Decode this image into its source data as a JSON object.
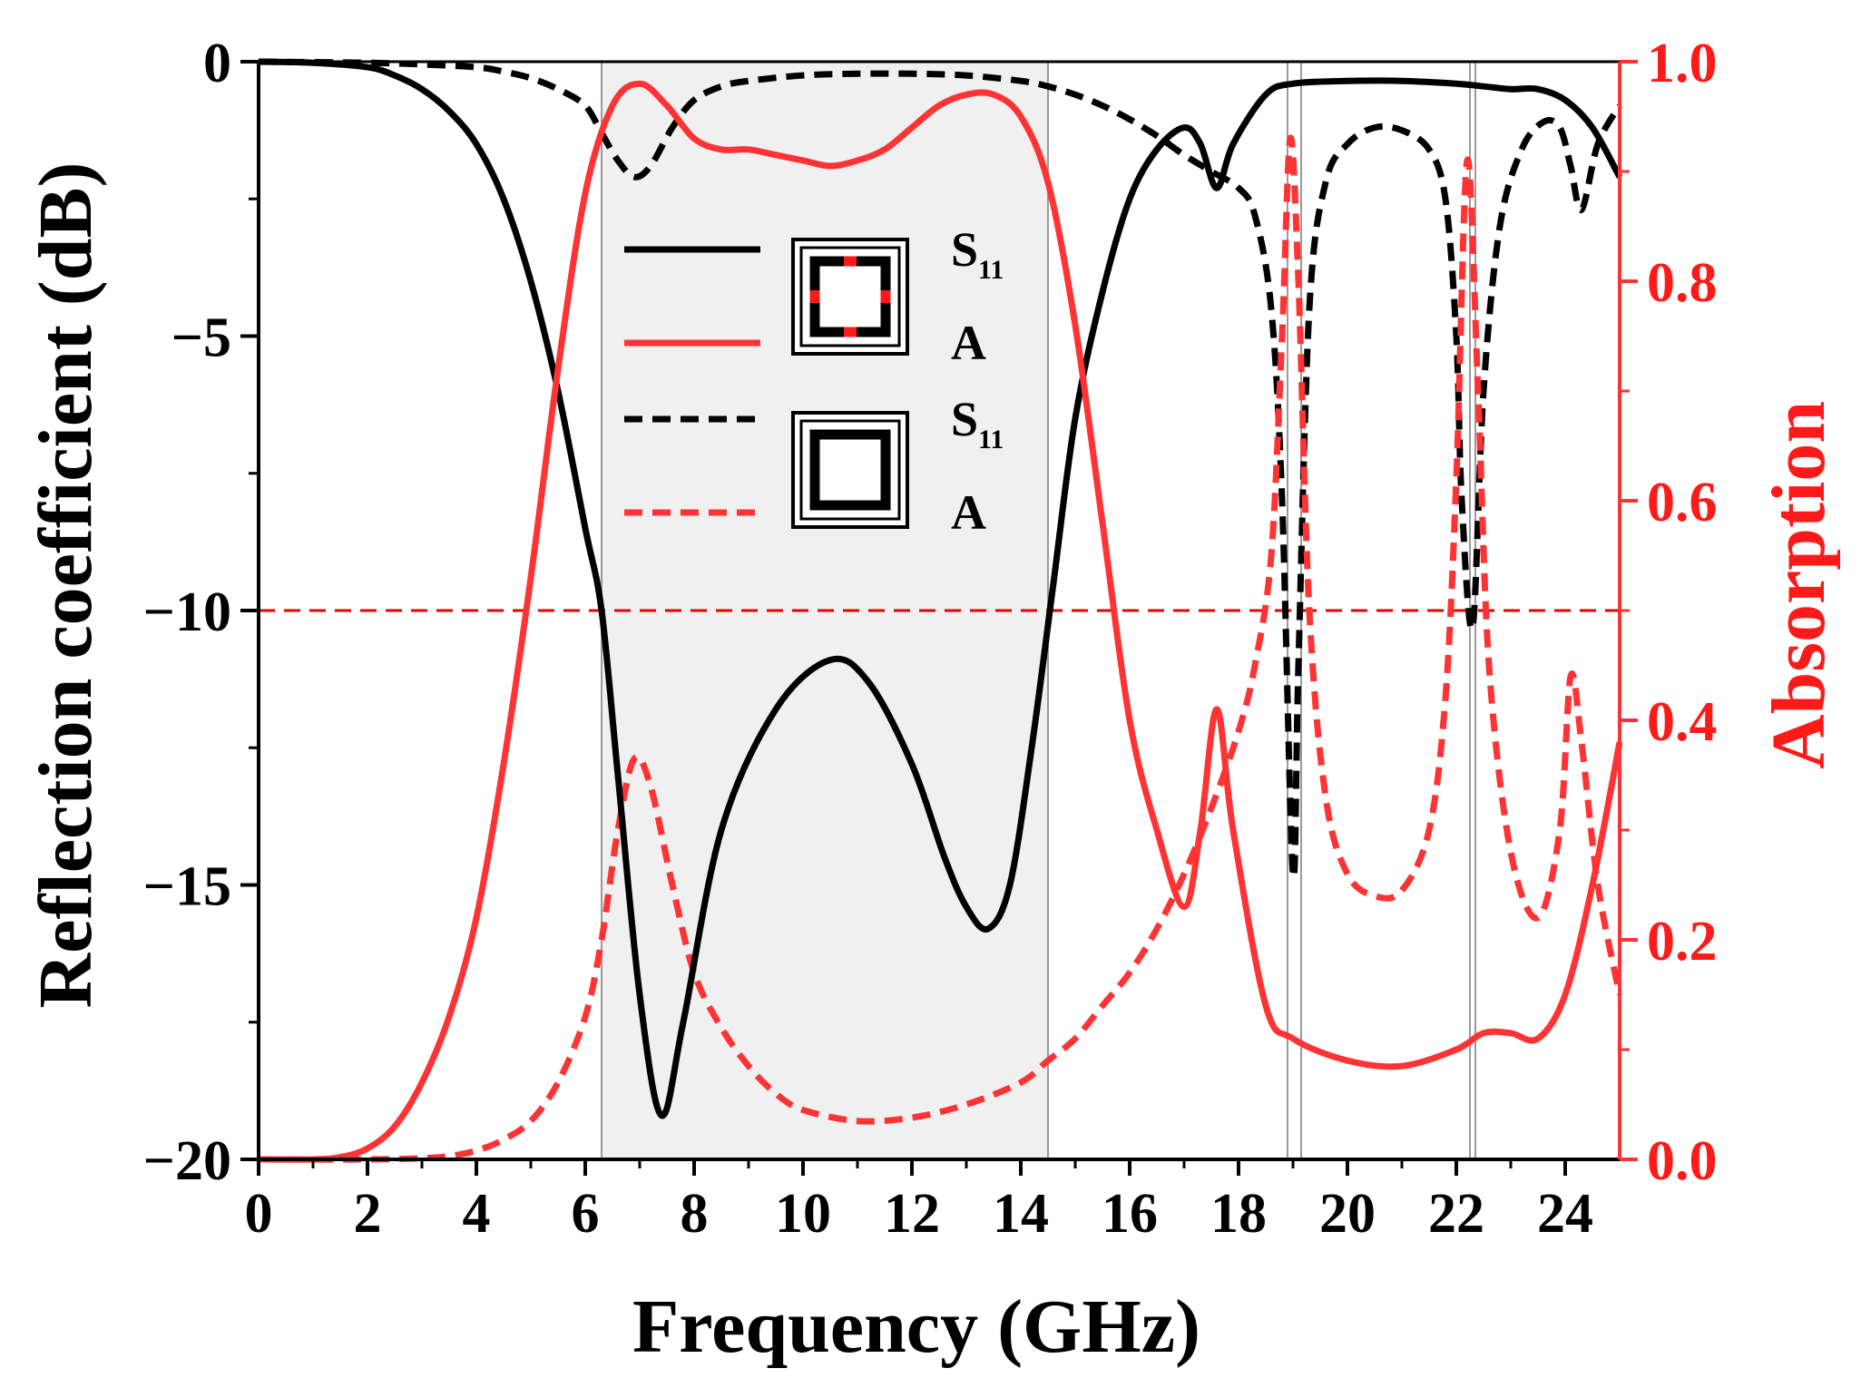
{
  "chart_data": {
    "type": "line",
    "xlabel": "Frequency (GHz)",
    "ylabel": "Reflection coefficient (dB)",
    "y2label": "Absorption",
    "xlim": [
      0,
      25
    ],
    "ylim": [
      -20,
      0
    ],
    "y2lim": [
      0,
      1.0
    ],
    "x_ticks": [
      "0",
      "2",
      "4",
      "6",
      "8",
      "10",
      "12",
      "14",
      "16",
      "18",
      "20",
      "22",
      "24"
    ],
    "y_ticks": [
      "−20",
      "−15",
      "−10",
      "−5",
      "0"
    ],
    "y2_ticks": [
      "0.0",
      "0.2",
      "0.4",
      "0.6",
      "0.8",
      "1.0"
    ],
    "grid": false,
    "legend_position": "center-left",
    "threshold_db": -10,
    "highlight_bands": [
      [
        6.3,
        14.5
      ]
    ],
    "vertical_lines": [
      6.3,
      14.5,
      18.9,
      19.15,
      22.25,
      22.35
    ],
    "colors": {
      "black": "#000000",
      "red": "#ff3333",
      "band": "#f0f0f0"
    },
    "series": [
      {
        "name": "S11",
        "axis": "left",
        "color": "#000000",
        "dash": "solid",
        "x": [
          0,
          1,
          2,
          2.5,
          3,
          3.5,
          4,
          4.5,
          5,
          5.5,
          6,
          6.3,
          6.6,
          7,
          7.4,
          7.8,
          8.5,
          9.5,
          10.5,
          11.2,
          12,
          12.6,
          13,
          13.4,
          13.8,
          14.2,
          14.6,
          15,
          15.5,
          16,
          16.5,
          17,
          17.3,
          17.6,
          17.9,
          18.5,
          19,
          20,
          21,
          22,
          22.5,
          23,
          23.5,
          24,
          24.5,
          25
        ],
        "y": [
          0,
          -0.02,
          -0.1,
          -0.25,
          -0.5,
          -0.9,
          -1.5,
          -2.5,
          -4,
          -6,
          -8.5,
          -10,
          -13,
          -17,
          -19.2,
          -17.5,
          -14,
          -11.8,
          -10.9,
          -11.3,
          -12.8,
          -14.5,
          -15.4,
          -15.8,
          -15,
          -12.5,
          -9.5,
          -6.5,
          -4.2,
          -2.5,
          -1.6,
          -1.2,
          -1.5,
          -2.3,
          -1.5,
          -0.6,
          -0.4,
          -0.35,
          -0.35,
          -0.4,
          -0.45,
          -0.5,
          -0.5,
          -0.7,
          -1.2,
          -2.1
        ]
      },
      {
        "name": "A",
        "axis": "right",
        "color": "#ff3333",
        "dash": "solid",
        "x": [
          0,
          1,
          1.5,
          2,
          2.5,
          3,
          3.5,
          4,
          4.5,
          5,
          5.5,
          6,
          6.5,
          7,
          7.5,
          8,
          8.5,
          9,
          9.5,
          10,
          10.5,
          11,
          11.5,
          12,
          12.5,
          13,
          13.5,
          14,
          14.5,
          15,
          15.5,
          16,
          16.5,
          17,
          17.3,
          17.6,
          17.9,
          18.5,
          19,
          20,
          21,
          22,
          22.5,
          23,
          23.5,
          24,
          24.5,
          25
        ],
        "y": [
          0,
          0,
          0.002,
          0.01,
          0.03,
          0.07,
          0.13,
          0.22,
          0.36,
          0.53,
          0.72,
          0.88,
          0.96,
          0.98,
          0.96,
          0.93,
          0.92,
          0.92,
          0.915,
          0.91,
          0.905,
          0.91,
          0.92,
          0.94,
          0.96,
          0.97,
          0.97,
          0.95,
          0.89,
          0.76,
          0.58,
          0.4,
          0.3,
          0.23,
          0.3,
          0.41,
          0.3,
          0.14,
          0.11,
          0.09,
          0.085,
          0.1,
          0.115,
          0.115,
          0.11,
          0.15,
          0.25,
          0.38
        ]
      },
      {
        "name": "S11",
        "axis": "left",
        "color": "#000000",
        "dash": "dashed",
        "x": [
          0,
          2,
          3,
          4,
          4.5,
          5,
          5.5,
          6,
          6.3,
          6.6,
          6.9,
          7.2,
          7.6,
          8,
          8.5,
          9,
          10,
          11,
          12,
          13,
          14,
          14.5,
          15,
          15.5,
          16,
          16.5,
          17,
          17.5,
          18,
          18.3,
          18.6,
          18.8,
          19,
          19.1,
          19.3,
          19.6,
          20,
          20.5,
          21,
          21.5,
          21.8,
          22,
          22.1,
          22.3,
          22.5,
          22.8,
          23.2,
          23.6,
          23.9,
          24.1,
          24.3,
          24.6,
          25
        ],
        "y": [
          0,
          -0.02,
          -0.05,
          -0.1,
          -0.18,
          -0.3,
          -0.5,
          -0.8,
          -1.3,
          -1.8,
          -2.1,
          -1.9,
          -1.2,
          -0.7,
          -0.45,
          -0.35,
          -0.25,
          -0.22,
          -0.22,
          -0.25,
          -0.35,
          -0.45,
          -0.6,
          -0.8,
          -1.05,
          -1.35,
          -1.7,
          -2,
          -2.3,
          -2.8,
          -4.5,
          -8,
          -14.8,
          -11,
          -4.5,
          -2.2,
          -1.5,
          -1.2,
          -1.25,
          -1.6,
          -2.5,
          -5,
          -8,
          -10.3,
          -6,
          -3,
          -1.6,
          -1.1,
          -1.2,
          -1.9,
          -2.7,
          -1.5,
          -0.8
        ]
      },
      {
        "name": "A",
        "axis": "right",
        "color": "#ff3333",
        "dash": "dashed",
        "x": [
          0,
          2,
          3,
          3.5,
          4,
          4.5,
          5,
          5.5,
          6,
          6.3,
          6.6,
          6.9,
          7.2,
          7.6,
          8,
          8.5,
          9,
          9.5,
          10,
          11,
          12,
          13,
          14,
          14.5,
          15,
          15.5,
          16,
          16.5,
          17,
          17.5,
          18,
          18.3,
          18.6,
          18.8,
          18.95,
          19.1,
          19.3,
          19.6,
          20,
          20.5,
          21,
          21.5,
          21.8,
          22,
          22.2,
          22.4,
          22.6,
          23,
          23.5,
          23.9,
          24.1,
          24.3,
          24.6,
          25
        ],
        "y": [
          0,
          0,
          0.001,
          0.003,
          0.008,
          0.018,
          0.035,
          0.07,
          0.13,
          0.2,
          0.3,
          0.365,
          0.34,
          0.25,
          0.17,
          0.12,
          0.085,
          0.06,
          0.045,
          0.035,
          0.038,
          0.05,
          0.07,
          0.09,
          0.11,
          0.14,
          0.17,
          0.21,
          0.26,
          0.32,
          0.39,
          0.45,
          0.55,
          0.75,
          0.93,
          0.8,
          0.5,
          0.33,
          0.26,
          0.24,
          0.245,
          0.3,
          0.42,
          0.62,
          0.91,
          0.7,
          0.45,
          0.28,
          0.22,
          0.3,
          0.44,
          0.38,
          0.25,
          0.15
        ]
      }
    ]
  }
}
